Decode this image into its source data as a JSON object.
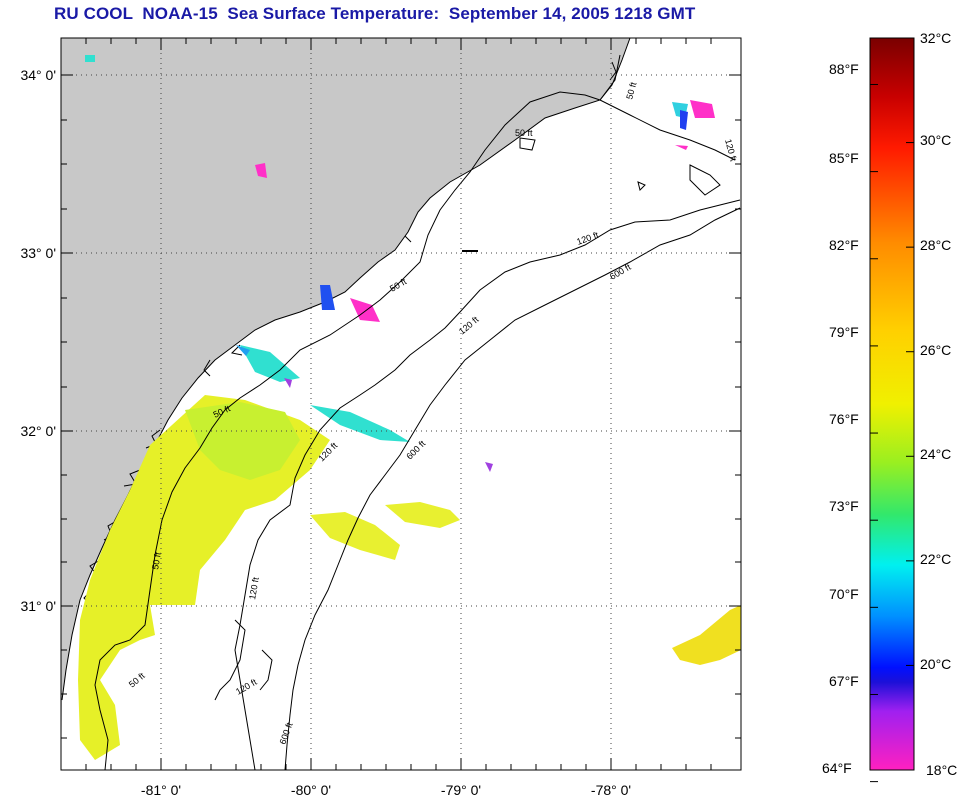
{
  "title": "RU COOL  NOAA-15  Sea Surface Temperature:  September 14, 2005 1218 GMT",
  "map": {
    "latitude_labels": [
      "34° 0'",
      "33° 0'",
      "32° 0'",
      "31° 0'"
    ],
    "longitude_labels": [
      "-81° 0'",
      "-80° 0'",
      "-79° 0'",
      "-78° 0'"
    ],
    "contour_labels": [
      "50 ft",
      "50 ft",
      "50 ft",
      "50 ft",
      "50 ft",
      "50 ft",
      "120 ft",
      "120 ft",
      "120 ft",
      "120 ft",
      "120 ft",
      "120 ft",
      "600 ft",
      "600 ft",
      "600 ft"
    ],
    "land_color": "#c8c8c8",
    "ocean_color": "#ffffff"
  },
  "colorbar": {
    "fahrenheit_labels": [
      "88°F",
      "85°F",
      "82°F",
      "79°F",
      "76°F",
      "73°F",
      "70°F",
      "67°F",
      "64°F"
    ],
    "celsius_labels": [
      "32°C",
      "30°C",
      "28°C",
      "26°C",
      "24°C",
      "22°C",
      "20°C",
      "18°C"
    ],
    "celsius_values": [
      32,
      30,
      28,
      26,
      24,
      22,
      20,
      18
    ],
    "fahrenheit_values": [
      88,
      85,
      82,
      79,
      76,
      73,
      70,
      67,
      64
    ],
    "min_c": 18,
    "max_c": 32
  }
}
